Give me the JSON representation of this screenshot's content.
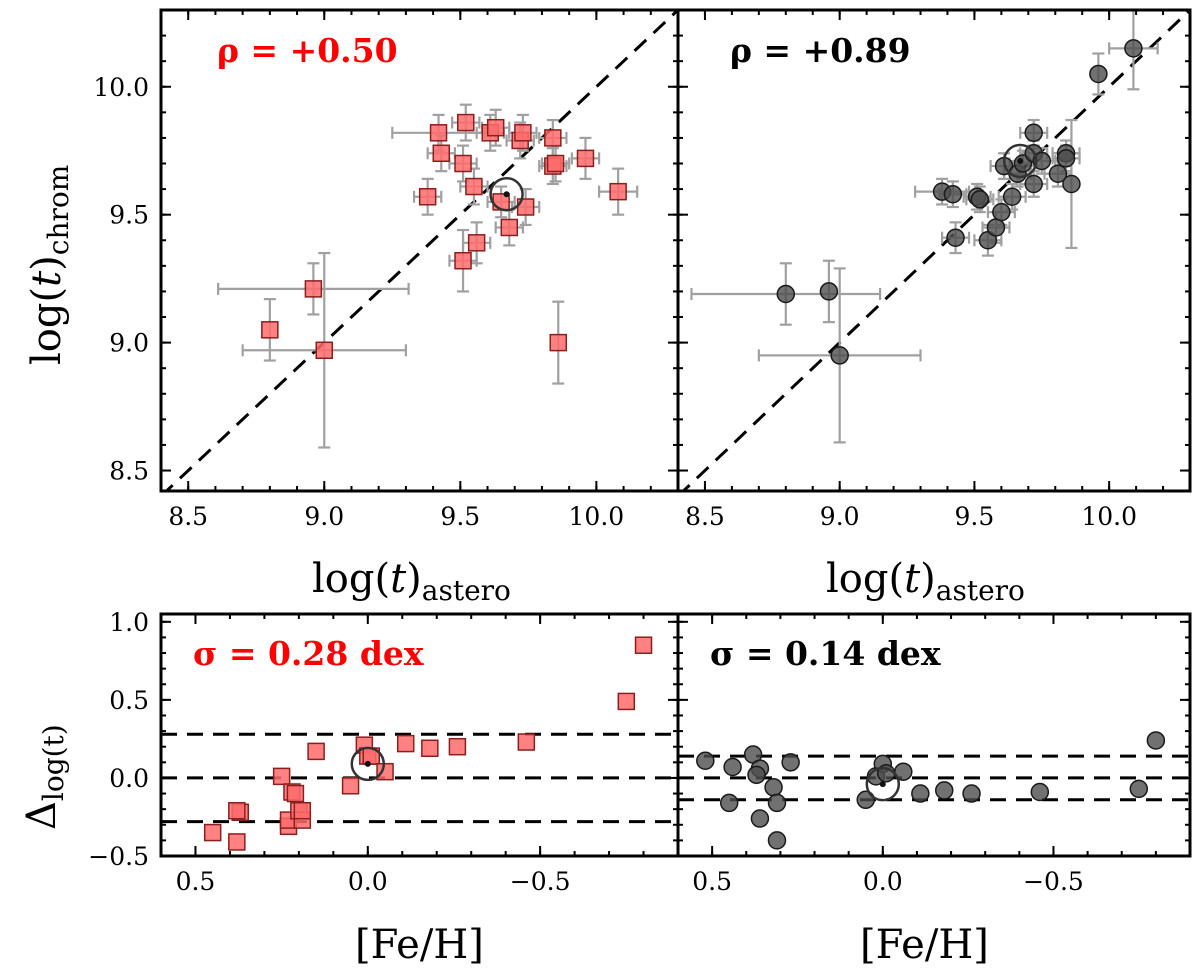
{
  "colors": {
    "red": "#ff0000",
    "marker_red": "#ff6b6b",
    "marker_gray": "#4d4d4d",
    "errorbar": "#a0a0a0",
    "text_black": "#000000"
  },
  "chart_data": [
    {
      "type": "scatter",
      "panel": "top-left",
      "annotation": "ρ = +0.50",
      "annotation_color": "#ff0000",
      "xlabel": "log(t)astero",
      "xlabel_main": "log(",
      "xlabel_var": "t",
      "xlabel_close": ")",
      "xlabel_sub": "astero",
      "ylabel": "log(t)chrom",
      "ylabel_main": "log(",
      "ylabel_var": "t",
      "ylabel_close": ")",
      "ylabel_sub": "chrom",
      "xlim": [
        8.4,
        10.3
      ],
      "ylim": [
        8.42,
        10.3
      ],
      "xticks": [
        "8.5",
        "9.0",
        "9.5",
        "10.0"
      ],
      "yticks": [
        "8.5",
        "9.0",
        "9.5",
        "10.0"
      ],
      "reference_line": "y = x",
      "marker": "square",
      "points": [
        {
          "x": 8.8,
          "y": 9.05,
          "xerr": 0.0,
          "yerr": 0.12
        },
        {
          "x": 8.96,
          "y": 9.21,
          "xerr": 0.35,
          "yerr": 0.1
        },
        {
          "x": 9.0,
          "y": 8.97,
          "xerr": 0.3,
          "yerr": 0.38
        },
        {
          "x": 9.38,
          "y": 9.57,
          "xerr": 0.05,
          "yerr": 0.07
        },
        {
          "x": 9.42,
          "y": 9.82,
          "xerr": 0.17,
          "yerr": 0.07
        },
        {
          "x": 9.43,
          "y": 9.74,
          "xerr": 0.05,
          "yerr": 0.07
        },
        {
          "x": 9.51,
          "y": 9.7,
          "xerr": 0.05,
          "yerr": 0.07
        },
        {
          "x": 9.51,
          "y": 9.32,
          "xerr": 0.05,
          "yerr": 0.12
        },
        {
          "x": 9.52,
          "y": 9.86,
          "xerr": 0.05,
          "yerr": 0.07
        },
        {
          "x": 9.55,
          "y": 9.61,
          "xerr": 0.05,
          "yerr": 0.07
        },
        {
          "x": 9.56,
          "y": 9.39,
          "xerr": 0.05,
          "yerr": 0.08
        },
        {
          "x": 9.61,
          "y": 9.82,
          "xerr": 0.05,
          "yerr": 0.07
        },
        {
          "x": 9.63,
          "y": 9.84,
          "xerr": 0.05,
          "yerr": 0.07
        },
        {
          "x": 9.65,
          "y": 9.55,
          "xerr": 0.05,
          "yerr": 0.06
        },
        {
          "x": 9.68,
          "y": 9.45,
          "xerr": 0.05,
          "yerr": 0.07
        },
        {
          "x": 9.72,
          "y": 9.79,
          "xerr": 0.05,
          "yerr": 0.07
        },
        {
          "x": 9.73,
          "y": 9.82,
          "xerr": 0.05,
          "yerr": 0.07
        },
        {
          "x": 9.74,
          "y": 9.53,
          "xerr": 0.05,
          "yerr": 0.07
        },
        {
          "x": 9.84,
          "y": 9.8,
          "xerr": 0.05,
          "yerr": 0.07
        },
        {
          "x": 9.84,
          "y": 9.69,
          "xerr": 0.05,
          "yerr": 0.07
        },
        {
          "x": 9.85,
          "y": 9.7,
          "xerr": 0.05,
          "yerr": 0.07
        },
        {
          "x": 9.86,
          "y": 9.0,
          "xerr": 0.0,
          "yerr": 0.16
        },
        {
          "x": 9.96,
          "y": 9.72,
          "xerr": 0.05,
          "yerr": 0.08
        },
        {
          "x": 10.08,
          "y": 9.59,
          "xerr": 0.07,
          "yerr": 0.09
        }
      ],
      "highlight": {
        "x": 9.67,
        "y": 9.58
      }
    },
    {
      "type": "scatter",
      "panel": "top-right",
      "annotation": "ρ = +0.89",
      "annotation_color": "#000000",
      "xlabel": "log(t)astero",
      "xlabel_main": "log(",
      "xlabel_var": "t",
      "xlabel_close": ")",
      "xlabel_sub": "astero",
      "xlim": [
        8.4,
        10.3
      ],
      "ylim": [
        8.42,
        10.3
      ],
      "xticks": [
        "8.5",
        "9.0",
        "9.5",
        "10.0"
      ],
      "reference_line": "y = x",
      "marker": "circle",
      "points": [
        {
          "x": 8.8,
          "y": 9.19,
          "xerr": 0.35,
          "yerr": 0.12
        },
        {
          "x": 8.96,
          "y": 9.2,
          "xerr": 0.0,
          "yerr": 0.12
        },
        {
          "x": 9.0,
          "y": 8.95,
          "xerr": 0.3,
          "yerr": 0.34
        },
        {
          "x": 9.38,
          "y": 9.59,
          "xerr": 0.1,
          "yerr": 0.05
        },
        {
          "x": 9.42,
          "y": 9.58,
          "xerr": 0.05,
          "yerr": 0.05
        },
        {
          "x": 9.43,
          "y": 9.41,
          "xerr": 0.05,
          "yerr": 0.06
        },
        {
          "x": 9.51,
          "y": 9.57,
          "xerr": 0.05,
          "yerr": 0.05
        },
        {
          "x": 9.52,
          "y": 9.56,
          "xerr": 0.05,
          "yerr": 0.05
        },
        {
          "x": 9.55,
          "y": 9.4,
          "xerr": 0.05,
          "yerr": 0.06
        },
        {
          "x": 9.58,
          "y": 9.45,
          "xerr": 0.05,
          "yerr": 0.06
        },
        {
          "x": 9.6,
          "y": 9.51,
          "xerr": 0.05,
          "yerr": 0.05
        },
        {
          "x": 9.61,
          "y": 9.69,
          "xerr": 0.05,
          "yerr": 0.05
        },
        {
          "x": 9.64,
          "y": 9.57,
          "xerr": 0.05,
          "yerr": 0.05
        },
        {
          "x": 9.66,
          "y": 9.66,
          "xerr": 0.05,
          "yerr": 0.05
        },
        {
          "x": 9.68,
          "y": 9.7,
          "xerr": 0.05,
          "yerr": 0.05
        },
        {
          "x": 9.72,
          "y": 9.82,
          "xerr": 0.05,
          "yerr": 0.05
        },
        {
          "x": 9.72,
          "y": 9.74,
          "xerr": 0.05,
          "yerr": 0.05
        },
        {
          "x": 9.72,
          "y": 9.62,
          "xerr": 0.05,
          "yerr": 0.05
        },
        {
          "x": 9.75,
          "y": 9.71,
          "xerr": 0.05,
          "yerr": 0.05
        },
        {
          "x": 9.81,
          "y": 9.66,
          "xerr": 0.05,
          "yerr": 0.05
        },
        {
          "x": 9.84,
          "y": 9.74,
          "xerr": 0.05,
          "yerr": 0.05
        },
        {
          "x": 9.84,
          "y": 9.72,
          "xerr": 0.05,
          "yerr": 0.05
        },
        {
          "x": 9.86,
          "y": 9.62,
          "xerr": 0.0,
          "yerr": 0.25
        },
        {
          "x": 9.96,
          "y": 10.05,
          "xerr": 0.0,
          "yerr": 0.08
        },
        {
          "x": 10.09,
          "y": 10.15,
          "xerr": 0.09,
          "yerr": 0.16
        }
      ],
      "highlight": {
        "x": 9.67,
        "y": 9.71
      }
    },
    {
      "type": "scatter",
      "panel": "bottom-left",
      "annotation": "σ = 0.28 dex",
      "annotation_color": "#ff0000",
      "xlabel": "[Fe/H]",
      "ylabel": "Δlog(t)",
      "ylabel_main": "Δ",
      "ylabel_sub": "log(t)",
      "xlim": [
        0.6,
        -0.9
      ],
      "ylim": [
        -0.5,
        1.05
      ],
      "xticks": [
        "0.5",
        "0.0",
        "−0.5"
      ],
      "yticks": [
        "−0.5",
        "0.0",
        "0.5",
        "1.0"
      ],
      "reference_lines": [
        0.28,
        0.0,
        -0.28
      ],
      "marker": "square",
      "points": [
        {
          "x": 0.45,
          "y": -0.35
        },
        {
          "x": 0.38,
          "y": -0.41
        },
        {
          "x": 0.37,
          "y": -0.22
        },
        {
          "x": 0.38,
          "y": -0.21
        },
        {
          "x": 0.25,
          "y": 0.01
        },
        {
          "x": 0.23,
          "y": -0.31
        },
        {
          "x": 0.23,
          "y": -0.27
        },
        {
          "x": 0.22,
          "y": -0.09
        },
        {
          "x": 0.21,
          "y": -0.1
        },
        {
          "x": 0.2,
          "y": -0.21
        },
        {
          "x": 0.19,
          "y": -0.27
        },
        {
          "x": 0.19,
          "y": -0.21
        },
        {
          "x": 0.15,
          "y": 0.17
        },
        {
          "x": 0.05,
          "y": -0.05
        },
        {
          "x": 0.01,
          "y": 0.21
        },
        {
          "x": 0.0,
          "y": 0.14
        },
        {
          "x": -0.01,
          "y": 0.14
        },
        {
          "x": -0.05,
          "y": 0.04
        },
        {
          "x": -0.11,
          "y": 0.22
        },
        {
          "x": -0.18,
          "y": 0.19
        },
        {
          "x": -0.26,
          "y": 0.2
        },
        {
          "x": -0.46,
          "y": 0.23
        },
        {
          "x": -0.75,
          "y": 0.49
        },
        {
          "x": -0.8,
          "y": 0.85
        }
      ],
      "highlight": {
        "x": 0.0,
        "y": 0.09
      }
    },
    {
      "type": "scatter",
      "panel": "bottom-right",
      "annotation": "σ = 0.14 dex",
      "annotation_color": "#000000",
      "xlabel": "[Fe/H]",
      "xlim": [
        0.6,
        -0.9
      ],
      "ylim": [
        -0.5,
        1.05
      ],
      "xticks": [
        "0.5",
        "0.0",
        "−0.5"
      ],
      "reference_lines": [
        0.14,
        0.0,
        -0.14
      ],
      "marker": "circle",
      "points": [
        {
          "x": 0.52,
          "y": 0.11
        },
        {
          "x": 0.44,
          "y": 0.07
        },
        {
          "x": 0.45,
          "y": -0.16
        },
        {
          "x": 0.38,
          "y": 0.15
        },
        {
          "x": 0.36,
          "y": 0.06
        },
        {
          "x": 0.37,
          "y": 0.02
        },
        {
          "x": 0.36,
          "y": -0.26
        },
        {
          "x": 0.32,
          "y": -0.06
        },
        {
          "x": 0.31,
          "y": -0.4
        },
        {
          "x": 0.31,
          "y": -0.16
        },
        {
          "x": 0.27,
          "y": 0.1
        },
        {
          "x": 0.05,
          "y": -0.14
        },
        {
          "x": 0.02,
          "y": 0.01
        },
        {
          "x": 0.0,
          "y": 0.09
        },
        {
          "x": -0.01,
          "y": 0.03
        },
        {
          "x": -0.06,
          "y": 0.04
        },
        {
          "x": -0.11,
          "y": -0.1
        },
        {
          "x": -0.18,
          "y": -0.08
        },
        {
          "x": -0.26,
          "y": -0.1
        },
        {
          "x": -0.46,
          "y": -0.09
        },
        {
          "x": -0.75,
          "y": -0.07
        },
        {
          "x": -0.8,
          "y": 0.24
        }
      ],
      "highlight": {
        "x": 0.0,
        "y": -0.04
      }
    }
  ]
}
